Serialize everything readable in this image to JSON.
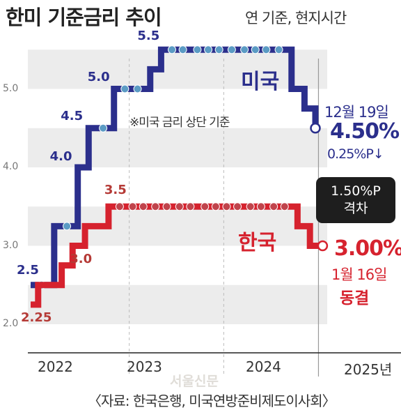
{
  "header": {
    "title": "한미 기준금리 추이",
    "subtitle": "연 기준, 현지시간"
  },
  "note": "※미국 금리 상단 기준",
  "source": "〈자료: 한국은행, 미국연방준비제도이사회〉",
  "watermark": "서울신문",
  "annotations": {
    "us_date": "12월 19일",
    "us_rate": "4.50%",
    "us_change": "0.25%P↓",
    "gap_line1": "1.50%P",
    "gap_line2": "격차",
    "kr_rate": "3.00%",
    "kr_date": "1월 16일",
    "kr_status": "동결"
  },
  "colors": {
    "us": "#2b2f8c",
    "kr": "#d6222e",
    "band": "#ececec",
    "gap_box": "#1e1e1e"
  },
  "chart_data": {
    "type": "line",
    "step": true,
    "title": "한미 기준금리 추이",
    "subtitle": "연 기준, 현지시간",
    "x_ticks": [
      "2022",
      "2023",
      "2024",
      "2025년"
    ],
    "y_ticks": [
      "2.0",
      "3.0",
      "4.0",
      "5.0"
    ],
    "ylim": [
      1.9,
      5.65
    ],
    "grid": "horizontal bands",
    "series": [
      {
        "name": "미국",
        "color": "#2b2f8c",
        "points": [
          [
            "2021-12-15",
            2.5
          ],
          [
            "2022-01-26",
            2.5
          ],
          [
            "2022-03-16",
            3.25
          ],
          [
            "2022-05-04",
            3.25
          ],
          [
            "2022-06-15",
            4.0
          ],
          [
            "2022-07-27",
            4.5
          ],
          [
            "2022-09-21",
            4.5
          ],
          [
            "2022-11-02",
            5.0
          ],
          [
            "2022-12-14",
            5.0
          ],
          [
            "2023-02-01",
            5.0
          ],
          [
            "2023-03-22",
            5.25
          ],
          [
            "2023-05-03",
            5.5
          ],
          [
            "2023-06-14",
            5.5
          ],
          [
            "2023-07-26",
            5.5
          ],
          [
            "2023-09-20",
            5.5
          ],
          [
            "2023-11-01",
            5.5
          ],
          [
            "2023-12-13",
            5.5
          ],
          [
            "2024-01-31",
            5.5
          ],
          [
            "2024-03-20",
            5.5
          ],
          [
            "2024-05-01",
            5.5
          ],
          [
            "2024-06-12",
            5.5
          ],
          [
            "2024-07-31",
            5.5
          ],
          [
            "2024-09-18",
            5.0
          ],
          [
            "2024-11-07",
            4.75
          ],
          [
            "2024-12-19",
            4.5
          ]
        ],
        "labels": [
          {
            "date": "2021-12-15",
            "text": "2.5"
          },
          {
            "date": "2022-06-15",
            "text": "4.0"
          },
          {
            "date": "2022-07-27",
            "text": "4.5"
          },
          {
            "date": "2022-11-02",
            "text": "5.0"
          },
          {
            "date": "2023-05-03",
            "text": "5.5"
          }
        ]
      },
      {
        "name": "한국",
        "color": "#d6222e",
        "points": [
          [
            "2021-12-15",
            2.25
          ],
          [
            "2022-01-13",
            2.5
          ],
          [
            "2022-04-14",
            2.75
          ],
          [
            "2022-05-26",
            3.0
          ],
          [
            "2022-07-13",
            3.25
          ],
          [
            "2022-10-12",
            3.5
          ],
          [
            "2022-11-24",
            3.5
          ],
          [
            "2023-01-13",
            3.5
          ],
          [
            "2023-02-23",
            3.5
          ],
          [
            "2023-04-11",
            3.5
          ],
          [
            "2023-05-25",
            3.5
          ],
          [
            "2023-07-13",
            3.5
          ],
          [
            "2023-08-24",
            3.5
          ],
          [
            "2023-10-19",
            3.5
          ],
          [
            "2023-11-30",
            3.5
          ],
          [
            "2024-01-11",
            3.5
          ],
          [
            "2024-02-22",
            3.5
          ],
          [
            "2024-04-12",
            3.5
          ],
          [
            "2024-05-23",
            3.5
          ],
          [
            "2024-07-11",
            3.5
          ],
          [
            "2024-08-22",
            3.5
          ],
          [
            "2024-10-11",
            3.25
          ],
          [
            "2024-11-28",
            3.0
          ],
          [
            "2025-01-16",
            3.0
          ]
        ],
        "labels": [
          {
            "date": "2021-12-15",
            "text": "2.25"
          },
          {
            "date": "2022-05-26",
            "text": "3.0"
          },
          {
            "date": "2022-10-12",
            "text": "3.5"
          }
        ]
      }
    ],
    "series_labels": [
      "미국",
      "한국"
    ]
  }
}
